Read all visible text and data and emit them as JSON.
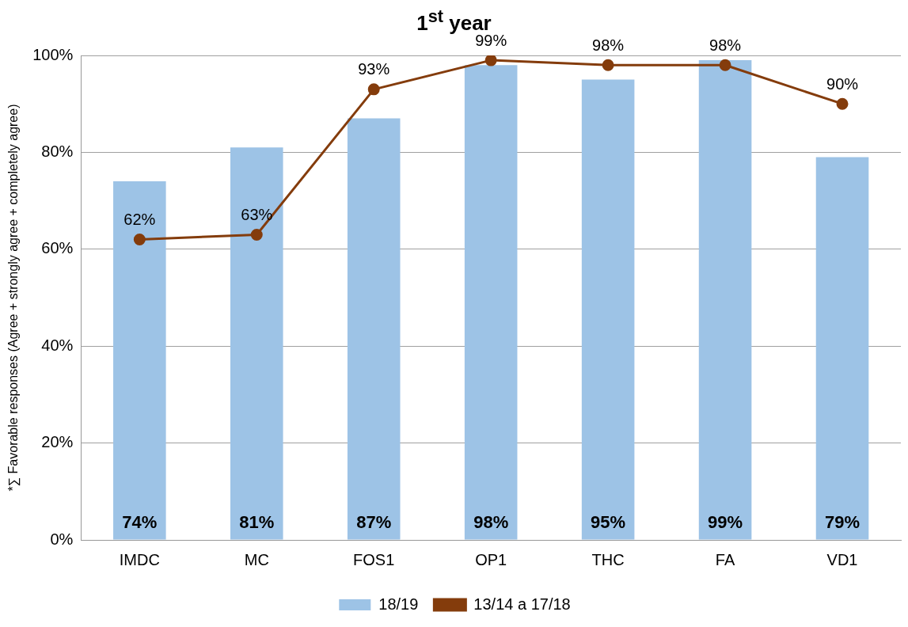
{
  "chart_data": {
    "type": "bar",
    "title": "1$^{st}$ year",
    "ylabel": "*∑ Favorable responses (Agree + strongly agree + completely agree)",
    "categories": [
      "IMDC",
      "MC",
      "FOS1",
      "OP1",
      "THC",
      "FA",
      "VD1"
    ],
    "series": [
      {
        "name": "18/19",
        "color": "#9dc3e6",
        "values": [
          74,
          81,
          87,
          98,
          95,
          99,
          79
        ],
        "value_labels": [
          "74%",
          "81%",
          "87%",
          "98%",
          "95%",
          "99%",
          "79%"
        ]
      },
      {
        "name": "13/14 a 17/18",
        "type": "line",
        "color": "#843c0c",
        "marker": "circle",
        "values": [
          62,
          63,
          93,
          99,
          98,
          98,
          90
        ],
        "value_labels": [
          "62%",
          "63%",
          "93%",
          "99%",
          "98%",
          "98%",
          "90%"
        ]
      }
    ],
    "ylim": [
      0,
      100
    ],
    "yticks": [
      {
        "value": 0,
        "label": "0%"
      },
      {
        "value": 20,
        "label": "20%"
      },
      {
        "value": 40,
        "label": "40%"
      },
      {
        "value": 60,
        "label": "60%"
      },
      {
        "value": 80,
        "label": "80%"
      },
      {
        "value": 100,
        "label": "100%"
      }
    ],
    "grid": "y",
    "legend": "bottom"
  }
}
